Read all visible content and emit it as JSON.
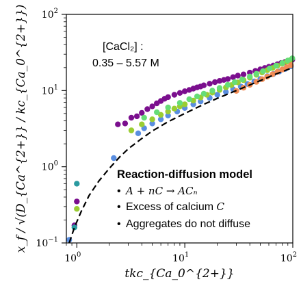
{
  "chart_data": {
    "type": "scatter",
    "xscale": "log",
    "yscale": "log",
    "xlim": [
      0.8,
      100
    ],
    "ylim": [
      0.1,
      100
    ],
    "x_ticks": [
      {
        "base": "10",
        "exp": "0"
      },
      {
        "base": "10",
        "exp": "1"
      },
      {
        "base": "10",
        "exp": "2"
      }
    ],
    "y_ticks": [
      {
        "base": "10",
        "exp": "−1"
      },
      {
        "base": "10",
        "exp": "0"
      },
      {
        "base": "10",
        "exp": "1"
      },
      {
        "base": "10",
        "exp": "2"
      }
    ],
    "xlabel": "tkc_{Ca_0^{2+}}",
    "ylabel": "x_f / √(D_{Ca^{2+}} / kc_{Ca_0^{2+}})",
    "annotations": {
      "conc_line1": "[CaCl₂] :",
      "conc_line2": "0.35 – 5.57 M",
      "model_title": "Reaction-diffusion model",
      "bullet1": "A + nC → ACₙ",
      "bullet2_prefix": "Excess of calcium ",
      "bullet2_var": "C",
      "bullet3": "Aggregates do not diffuse"
    },
    "model_line": {
      "style": "dashed",
      "color": "#000000",
      "x": [
        0.85,
        0.95,
        1.1,
        1.3,
        1.6,
        2,
        2.5,
        3,
        4,
        5,
        7,
        10,
        15,
        20,
        30,
        50,
        70,
        100
      ],
      "y": [
        0.1,
        0.16,
        0.26,
        0.42,
        0.65,
        0.95,
        1.35,
        1.72,
        2.35,
        2.95,
        3.9,
        5.0,
        6.6,
        7.9,
        10.0,
        13.5,
        16.5,
        20.0
      ]
    },
    "series": [
      {
        "color": "#7b0f8e",
        "x": [
          0.95,
          1.0,
          2.4,
          2.8,
          3.2,
          3.6,
          4.0,
          4.5,
          5,
          5.5,
          6,
          6.5,
          7,
          8,
          9,
          10,
          11,
          12,
          13,
          14,
          15,
          17,
          19,
          21,
          23,
          25,
          28,
          31,
          35,
          40,
          45,
          50,
          55,
          60,
          66,
          72,
          78,
          85,
          92,
          99
        ],
        "y": [
          0.17,
          0.35,
          3.6,
          3.7,
          4.4,
          4.6,
          5.1,
          5.7,
          6.2,
          6.8,
          7.3,
          7.8,
          8.2,
          8.8,
          9.3,
          9.8,
          10.2,
          10.6,
          11.0,
          11.3,
          11.7,
          12.3,
          12.9,
          13.4,
          13.8,
          14.2,
          15.0,
          15.7,
          16.3,
          17.2,
          18.1,
          19.0,
          19.8,
          20.5,
          21.3,
          22.2,
          23.0,
          23.8,
          24.6,
          25.5
        ]
      },
      {
        "color": "#2a9aa0",
        "x": [
          0.95,
          1.0
        ],
        "y": [
          0.16,
          0.6
        ]
      },
      {
        "color": "#5a8ee0",
        "x": [
          0.85,
          2.2,
          3.7,
          4.2,
          5,
          6,
          7,
          8.5,
          10,
          12,
          14,
          17,
          20,
          24,
          28,
          33,
          38,
          44,
          50,
          58,
          66,
          75,
          85,
          96
        ],
        "y": [
          0.11,
          1.3,
          2.75,
          3.2,
          3.7,
          4.2,
          4.7,
          5.3,
          5.9,
          6.6,
          7.2,
          8.0,
          8.8,
          9.6,
          10.4,
          11.3,
          12.2,
          13.2,
          14.2,
          15.4,
          16.5,
          17.8,
          19.2,
          20.8
        ]
      },
      {
        "color": "#9acd32",
        "x": [
          1.0,
          3.2,
          4.0,
          5,
          6,
          7,
          8,
          9,
          10,
          12,
          14,
          16,
          18,
          21,
          24,
          27,
          31,
          35,
          40,
          46,
          52,
          58,
          65,
          72,
          80,
          88,
          96
        ],
        "y": [
          0.28,
          3.0,
          3.6,
          4.2,
          4.8,
          5.3,
          5.8,
          6.2,
          6.6,
          7.4,
          8.1,
          8.8,
          9.4,
          10.2,
          11.0,
          11.8,
          12.8,
          13.7,
          14.8,
          16.1,
          17.3,
          18.5,
          19.8,
          21.2,
          22.6,
          24.0,
          25.4
        ]
      },
      {
        "color": "#66dd77",
        "x": [
          4.2,
          5.5,
          7,
          9,
          11,
          13,
          15,
          18,
          21,
          25,
          29,
          34,
          40,
          46,
          53,
          61,
          70,
          80,
          90,
          99
        ],
        "y": [
          4.4,
          5.2,
          6.0,
          6.9,
          7.7,
          8.4,
          9.1,
          10.0,
          10.8,
          11.9,
          12.9,
          14.0,
          15.3,
          16.6,
          18.0,
          19.5,
          21.2,
          23.0,
          24.8,
          26.5
        ]
      },
      {
        "color": "#f28c55",
        "x": [
          30,
          35,
          40,
          46,
          52,
          58,
          65,
          72,
          80,
          88,
          96
        ],
        "y": [
          9.9,
          10.9,
          11.9,
          13.0,
          14.1,
          15.2,
          16.4,
          17.6,
          18.9,
          20.2,
          21.5
        ]
      }
    ]
  }
}
